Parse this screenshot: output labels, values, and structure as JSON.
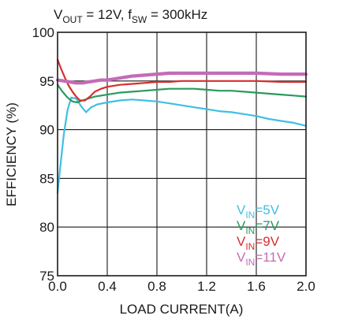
{
  "chart_data": {
    "type": "line",
    "title_parts": {
      "v": "V",
      "v_sub": "OUT",
      "mid": " = 12V, f",
      "f_sub": "SW",
      "end": " = 300kHz"
    },
    "xlabel": "LOAD CURRENT(A)",
    "ylabel": "EFFICIENCY (%)",
    "xlim": [
      0.0,
      2.0
    ],
    "ylim": [
      75,
      100
    ],
    "x_ticks": [
      0.0,
      0.4,
      0.8,
      1.2,
      1.6,
      2.0
    ],
    "x_tick_labels": [
      "0.0",
      "0.4",
      "0.8",
      "1.2",
      "1.6",
      "2.0"
    ],
    "y_ticks": [
      75,
      80,
      85,
      90,
      95,
      100
    ],
    "y_tick_labels": [
      "75",
      "80",
      "85",
      "90",
      "95",
      "100"
    ],
    "grid": true,
    "legend_position": "bottom-right",
    "series": [
      {
        "name": "V_IN=5V",
        "legend": {
          "pre": "V",
          "sub": "IN",
          "post": "=5V"
        },
        "color": "#3fbfe3",
        "x": [
          0.0,
          0.02,
          0.05,
          0.08,
          0.11,
          0.15,
          0.19,
          0.23,
          0.27,
          0.32,
          0.4,
          0.5,
          0.6,
          0.7,
          0.8,
          0.9,
          1.0,
          1.1,
          1.2,
          1.3,
          1.4,
          1.5,
          1.6,
          1.7,
          1.8,
          1.9,
          2.0
        ],
        "y": [
          83.5,
          86.0,
          89.5,
          92.0,
          93.3,
          93.2,
          92.4,
          91.8,
          92.3,
          92.6,
          92.8,
          93.0,
          93.1,
          93.0,
          92.9,
          92.7,
          92.5,
          92.3,
          92.1,
          91.9,
          91.8,
          91.6,
          91.4,
          91.1,
          90.9,
          90.7,
          90.4
        ]
      },
      {
        "name": "V_IN=7V",
        "legend": {
          "pre": "V",
          "sub": "IN",
          "post": "=7V"
        },
        "color": "#2a9a5c",
        "x": [
          0.0,
          0.04,
          0.08,
          0.12,
          0.16,
          0.2,
          0.25,
          0.3,
          0.4,
          0.5,
          0.6,
          0.7,
          0.8,
          0.9,
          1.0,
          1.1,
          1.2,
          1.3,
          1.4,
          1.5,
          1.6,
          1.7,
          1.8,
          1.9,
          2.0
        ],
        "y": [
          94.6,
          93.9,
          93.3,
          92.9,
          92.8,
          93.0,
          93.2,
          93.4,
          93.6,
          93.8,
          93.9,
          94.0,
          94.1,
          94.2,
          94.2,
          94.2,
          94.1,
          94.0,
          94.0,
          93.9,
          93.8,
          93.7,
          93.6,
          93.5,
          93.4
        ]
      },
      {
        "name": "V_IN=9V",
        "legend": {
          "pre": "V",
          "sub": "IN",
          "post": "=9V"
        },
        "color": "#d62e2e",
        "x": [
          0.0,
          0.03,
          0.06,
          0.09,
          0.12,
          0.15,
          0.18,
          0.22,
          0.26,
          0.3,
          0.35,
          0.4,
          0.5,
          0.6,
          0.7,
          0.8,
          0.9,
          1.0,
          1.2,
          1.4,
          1.6,
          1.8,
          2.0
        ],
        "y": [
          97.2,
          96.2,
          95.3,
          94.5,
          93.9,
          93.4,
          93.0,
          93.0,
          93.4,
          93.9,
          94.2,
          94.4,
          94.6,
          94.7,
          94.8,
          94.9,
          94.9,
          95.0,
          95.0,
          95.0,
          95.0,
          94.9,
          94.9
        ]
      },
      {
        "name": "V_IN=11V",
        "legend": {
          "pre": "V",
          "sub": "IN",
          "post": "=11V"
        },
        "color": "#c46bb8",
        "x": [
          0.0,
          0.05,
          0.1,
          0.15,
          0.2,
          0.25,
          0.3,
          0.35,
          0.4,
          0.5,
          0.6,
          0.7,
          0.8,
          0.9,
          1.0,
          1.1,
          1.2,
          1.4,
          1.6,
          1.8,
          2.0
        ],
        "y": [
          95.1,
          95.0,
          94.9,
          94.8,
          94.8,
          94.9,
          95.0,
          95.1,
          95.1,
          95.3,
          95.5,
          95.6,
          95.7,
          95.8,
          95.8,
          95.8,
          95.8,
          95.8,
          95.8,
          95.7,
          95.7
        ]
      }
    ]
  }
}
